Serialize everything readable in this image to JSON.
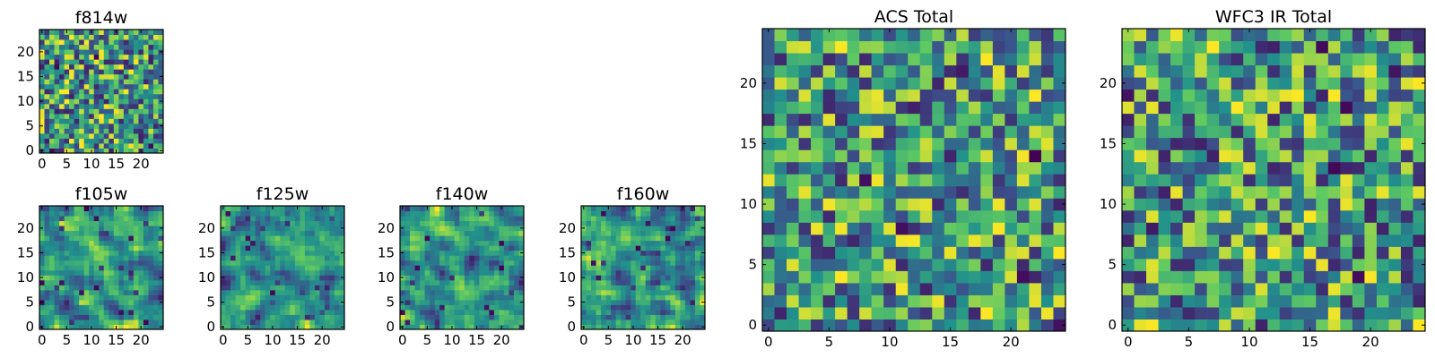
{
  "chart_data": [
    {
      "id": "f814w",
      "type": "heatmap",
      "title": "f814w",
      "grid_size": 25,
      "xticks": [
        0,
        5,
        10,
        15,
        20
      ],
      "yticks": [
        0,
        5,
        10,
        15,
        20
      ],
      "xlim": [
        -0.5,
        24.5
      ],
      "ylim": [
        -0.5,
        24.5
      ],
      "colormap": "viridis",
      "texture": "random-noise",
      "seed": 814
    },
    {
      "id": "f105w",
      "type": "heatmap",
      "title": "f105w",
      "grid_size": 25,
      "xticks": [
        0,
        5,
        10,
        15,
        20
      ],
      "yticks": [
        0,
        5,
        10,
        15,
        20
      ],
      "xlim": [
        -0.5,
        24.5
      ],
      "ylim": [
        -0.5,
        24.5
      ],
      "colormap": "viridis",
      "texture": "smoothed-noise",
      "seed": 105
    },
    {
      "id": "f125w",
      "type": "heatmap",
      "title": "f125w",
      "grid_size": 25,
      "xticks": [
        0,
        5,
        10,
        15,
        20
      ],
      "yticks": [
        0,
        5,
        10,
        15,
        20
      ],
      "xlim": [
        -0.5,
        24.5
      ],
      "ylim": [
        -0.5,
        24.5
      ],
      "colormap": "viridis",
      "texture": "smoothed-noise",
      "seed": 125
    },
    {
      "id": "f140w",
      "type": "heatmap",
      "title": "f140w",
      "grid_size": 25,
      "xticks": [
        0,
        5,
        10,
        15,
        20
      ],
      "yticks": [
        0,
        5,
        10,
        15,
        20
      ],
      "xlim": [
        -0.5,
        24.5
      ],
      "ylim": [
        -0.5,
        24.5
      ],
      "colormap": "viridis",
      "texture": "smoothed-noise",
      "seed": 140
    },
    {
      "id": "f160w",
      "type": "heatmap",
      "title": "f160w",
      "grid_size": 25,
      "xticks": [
        0,
        5,
        10,
        15,
        20
      ],
      "yticks": [
        0,
        5,
        10,
        15,
        20
      ],
      "xlim": [
        -0.5,
        24.5
      ],
      "ylim": [
        -0.5,
        24.5
      ],
      "colormap": "viridis",
      "texture": "smoothed-noise",
      "seed": 160
    },
    {
      "id": "acs-total",
      "type": "heatmap",
      "title": "ACS Total",
      "grid_size": 25,
      "xticks": [
        0,
        5,
        10,
        15,
        20
      ],
      "yticks": [
        0,
        5,
        10,
        15,
        20
      ],
      "xlim": [
        -0.5,
        24.5
      ],
      "ylim": [
        -0.5,
        24.5
      ],
      "colormap": "viridis",
      "texture": "random-noise",
      "seed": 2001
    },
    {
      "id": "wfc3-ir-total",
      "type": "heatmap",
      "title": "WFC3 IR Total",
      "grid_size": 25,
      "xticks": [
        0,
        5,
        10,
        15,
        20
      ],
      "yticks": [
        0,
        5,
        10,
        15,
        20
      ],
      "xlim": [
        -0.5,
        24.5
      ],
      "ylim": [
        -0.5,
        24.5
      ],
      "colormap": "viridis",
      "texture": "random-noise",
      "seed": 3002
    }
  ],
  "colormap_stops": [
    "#440154",
    "#3b528b",
    "#21918c",
    "#5ec962",
    "#fde725"
  ]
}
